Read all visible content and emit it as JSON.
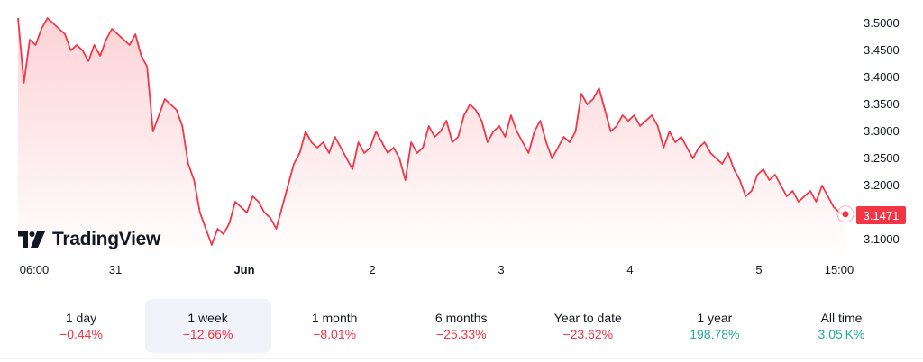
{
  "brand": {
    "name": "TradingView"
  },
  "colors": {
    "line": "#f23645",
    "negative": "#f23645",
    "positive": "#22ab94",
    "active_bg": "#f0f3fa"
  },
  "chart_data": {
    "type": "area",
    "x_tick_labels": [
      "06:00",
      "31",
      "Jun",
      "2",
      "3",
      "4",
      "5",
      "15:00"
    ],
    "y_tick_labels": [
      "3.5000",
      "3.4500",
      "3.4000",
      "3.3500",
      "3.3000",
      "3.2500",
      "3.2000",
      "3.1000"
    ],
    "ylim": [
      3.07,
      3.52
    ],
    "last_price": "3.1471",
    "series": [
      {
        "values": [
          3.51,
          3.39,
          3.47,
          3.46,
          3.49,
          3.51,
          3.5,
          3.49,
          3.48,
          3.45,
          3.46,
          3.45,
          3.43,
          3.46,
          3.44,
          3.47,
          3.49,
          3.48,
          3.47,
          3.46,
          3.48,
          3.44,
          3.42,
          3.3,
          3.33,
          3.36,
          3.35,
          3.34,
          3.31,
          3.24,
          3.21,
          3.15,
          3.12,
          3.09,
          3.12,
          3.11,
          3.13,
          3.17,
          3.16,
          3.15,
          3.18,
          3.17,
          3.15,
          3.14,
          3.12,
          3.16,
          3.2,
          3.24,
          3.26,
          3.3,
          3.28,
          3.27,
          3.28,
          3.26,
          3.29,
          3.27,
          3.25,
          3.23,
          3.28,
          3.26,
          3.27,
          3.3,
          3.28,
          3.26,
          3.27,
          3.25,
          3.21,
          3.28,
          3.26,
          3.27,
          3.31,
          3.29,
          3.3,
          3.32,
          3.28,
          3.29,
          3.33,
          3.35,
          3.34,
          3.32,
          3.28,
          3.3,
          3.31,
          3.29,
          3.33,
          3.3,
          3.28,
          3.26,
          3.3,
          3.32,
          3.28,
          3.25,
          3.27,
          3.29,
          3.28,
          3.3,
          3.37,
          3.35,
          3.36,
          3.38,
          3.34,
          3.3,
          3.31,
          3.33,
          3.32,
          3.33,
          3.31,
          3.32,
          3.33,
          3.31,
          3.27,
          3.3,
          3.28,
          3.29,
          3.27,
          3.25,
          3.27,
          3.28,
          3.26,
          3.25,
          3.24,
          3.26,
          3.23,
          3.21,
          3.18,
          3.19,
          3.22,
          3.23,
          3.21,
          3.22,
          3.2,
          3.18,
          3.19,
          3.17,
          3.18,
          3.19,
          3.17,
          3.2,
          3.18,
          3.16,
          3.15,
          3.147
        ]
      }
    ]
  },
  "periods": [
    {
      "label": "1 day",
      "change": "−0.44%",
      "dir": "neg",
      "active": false
    },
    {
      "label": "1 week",
      "change": "−12.66%",
      "dir": "neg",
      "active": true
    },
    {
      "label": "1 month",
      "change": "−8.01%",
      "dir": "neg",
      "active": false
    },
    {
      "label": "6 months",
      "change": "−25.33%",
      "dir": "neg",
      "active": false
    },
    {
      "label": "Year to date",
      "change": "−23.62%",
      "dir": "neg",
      "active": false
    },
    {
      "label": "1 year",
      "change": "198.78%",
      "dir": "pos",
      "active": false
    },
    {
      "label": "All time",
      "change": "3.05 K%",
      "dir": "pos",
      "active": false
    }
  ]
}
